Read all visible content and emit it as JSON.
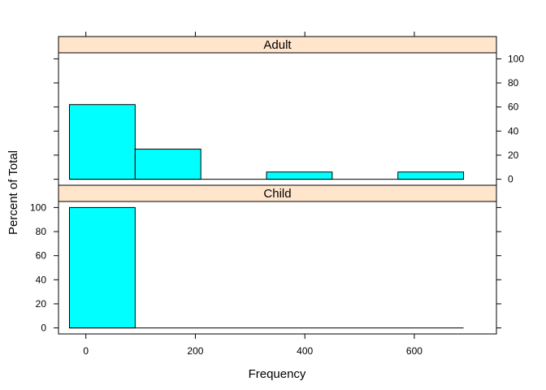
{
  "chart_data": {
    "type": "bar",
    "xlabel": "Frequency",
    "ylabel": "Percent of Total",
    "xlim": [
      -50,
      750
    ],
    "ylim": [
      -5,
      105
    ],
    "x_ticks": [
      0,
      200,
      400,
      600
    ],
    "y_ticks": [
      0,
      20,
      40,
      60,
      80,
      100
    ],
    "bin_edges": [
      -30,
      90,
      210,
      330,
      450,
      570,
      690
    ],
    "colors": {
      "bar_fill": "#00ffff",
      "strip_fill": "#ffe5cc",
      "stroke": "#000000"
    },
    "panels": [
      {
        "name": "Adult",
        "values": [
          62,
          25,
          0,
          6,
          0,
          6
        ]
      },
      {
        "name": "Child",
        "values": [
          100,
          0,
          0,
          0,
          0,
          0
        ]
      }
    ]
  }
}
